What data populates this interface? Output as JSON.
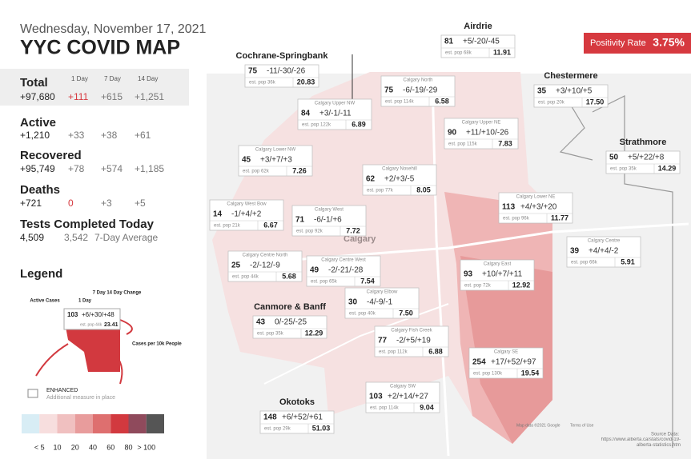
{
  "header": {
    "date": "Wednesday, November 17, 2021",
    "title": "YYC COVID MAP"
  },
  "positivity": {
    "label": "Positivity Rate",
    "value": "3.75%"
  },
  "summary": {
    "columns": [
      "1 Day",
      "7 Day",
      "14 Day"
    ],
    "rows": [
      {
        "label": "Total",
        "total": "+97,680",
        "values": [
          "+111",
          "+615",
          "+1,251"
        ]
      },
      {
        "label": "Active",
        "total": "+1,210",
        "values": [
          "+33",
          "+38",
          "+61"
        ]
      },
      {
        "label": "Recovered",
        "total": "+95,749",
        "values": [
          "+78",
          "+574",
          "+1,185"
        ]
      },
      {
        "label": "Deaths",
        "total": "+721",
        "values": [
          "0",
          "+3",
          "+5"
        ]
      }
    ]
  },
  "tests": {
    "label": "Tests Completed Today",
    "value": "4,509",
    "average": "3,542",
    "average_label": "7-Day Average"
  },
  "legend": {
    "title": "Legend",
    "active_label": "Active Cases",
    "day_label": "1 Day",
    "change_label": "7 Day 14 Day Change",
    "example": {
      "active": "103",
      "change": "+6/+30/+48",
      "pop": "est. pop 44k",
      "rate": "23.41"
    },
    "rate_label": "Cases per 10k People",
    "enhanced": "ENHANCED",
    "enhanced_note": "Additional measure in place",
    "scale_colors": [
      "#d8edf5",
      "#f7dede",
      "#f0c0c0",
      "#e89c9c",
      "#de6f6f",
      "#d2393f",
      "#8f4a5c",
      "#555555"
    ],
    "scale_labels": [
      "< 5",
      "10",
      "20",
      "40",
      "60",
      "80",
      "> 100"
    ]
  },
  "towns": [
    {
      "name": "Airdrie",
      "active": "81",
      "change": "+5/-20/-45",
      "pop": "est. pop 68k",
      "rate": "11.91"
    },
    {
      "name": "Cochrane-Springbank",
      "active": "75",
      "change": "-11/-30/-26",
      "pop": "est. pop 36k",
      "rate": "20.83"
    },
    {
      "name": "Chestermere",
      "active": "35",
      "change": "+3/+10/+5",
      "pop": "est. pop 20k",
      "rate": "17.50"
    },
    {
      "name": "Strathmore",
      "active": "50",
      "change": "+5/+22/+8",
      "pop": "est. pop 35k",
      "rate": "14.29"
    },
    {
      "name": "Canmore & Banff",
      "active": "43",
      "change": "0/-25/-25",
      "pop": "est. pop 35k",
      "rate": "12.29"
    },
    {
      "name": "Okotoks",
      "active": "148",
      "change": "+6/+52/+61",
      "pop": "est. pop 29k",
      "rate": "51.03"
    }
  ],
  "districts": [
    {
      "name": "Calgary North",
      "active": "75",
      "change": "-6/-19/-29",
      "pop": "est. pop 114k",
      "rate": "6.58"
    },
    {
      "name": "Calgary Upper NW",
      "active": "84",
      "change": "+3/-1/-11",
      "pop": "est. pop 122k",
      "rate": "6.89"
    },
    {
      "name": "Calgary Upper NE",
      "active": "90",
      "change": "+11/+10/-26",
      "pop": "est. pop 115k",
      "rate": "7.83"
    },
    {
      "name": "Calgary Lower NW",
      "active": "45",
      "change": "+3/+7/+3",
      "pop": "est. pop 62k",
      "rate": "7.26"
    },
    {
      "name": "Calgary Nosehill",
      "active": "62",
      "change": "+2/+3/-5",
      "pop": "est. pop 77k",
      "rate": "8.05"
    },
    {
      "name": "Calgary Lower NE",
      "active": "113",
      "change": "+4/+3/+20",
      "pop": "est. pop 96k",
      "rate": "11.77"
    },
    {
      "name": "Calgary West Bow",
      "active": "14",
      "change": "-1/+4/+2",
      "pop": "est. pop 21k",
      "rate": "6.67"
    },
    {
      "name": "Calgary West",
      "active": "71",
      "change": "-6/-1/+6",
      "pop": "est. pop 92k",
      "rate": "7.72"
    },
    {
      "name": "Calgary Centre",
      "active": "39",
      "change": "+4/+4/-2",
      "pop": "est. pop 66k",
      "rate": "5.91"
    },
    {
      "name": "Calgary Centre North",
      "active": "25",
      "change": "-2/-12/-9",
      "pop": "est. pop 44k",
      "rate": "5.68"
    },
    {
      "name": "Calgary Centre West",
      "active": "49",
      "change": "-2/-21/-28",
      "pop": "est. pop 65k",
      "rate": "7.54"
    },
    {
      "name": "Calgary East",
      "active": "93",
      "change": "+10/+7/+11",
      "pop": "est. pop 72k",
      "rate": "12.92"
    },
    {
      "name": "Calgary Elbow",
      "active": "30",
      "change": "-4/-9/-1",
      "pop": "est. pop 40k",
      "rate": "7.50"
    },
    {
      "name": "Calgary Fish Creek",
      "active": "77",
      "change": "-2/+5/+19",
      "pop": "est. pop 112k",
      "rate": "6.88"
    },
    {
      "name": "Calgary SE",
      "active": "254",
      "change": "+17/+52/+97",
      "pop": "est. pop 130k",
      "rate": "19.54"
    },
    {
      "name": "Calgary SW",
      "active": "103",
      "change": "+2/+14/+27",
      "pop": "est. pop 114k",
      "rate": "9.04"
    }
  ],
  "map": {
    "city": "Calgary",
    "credit": "Map data ©2021 Google",
    "terms": "Terms of Use"
  },
  "source": {
    "label": "Source Data:",
    "url": "https://www.alberta.ca/stats/covid-19-alberta-statistics.htm"
  }
}
